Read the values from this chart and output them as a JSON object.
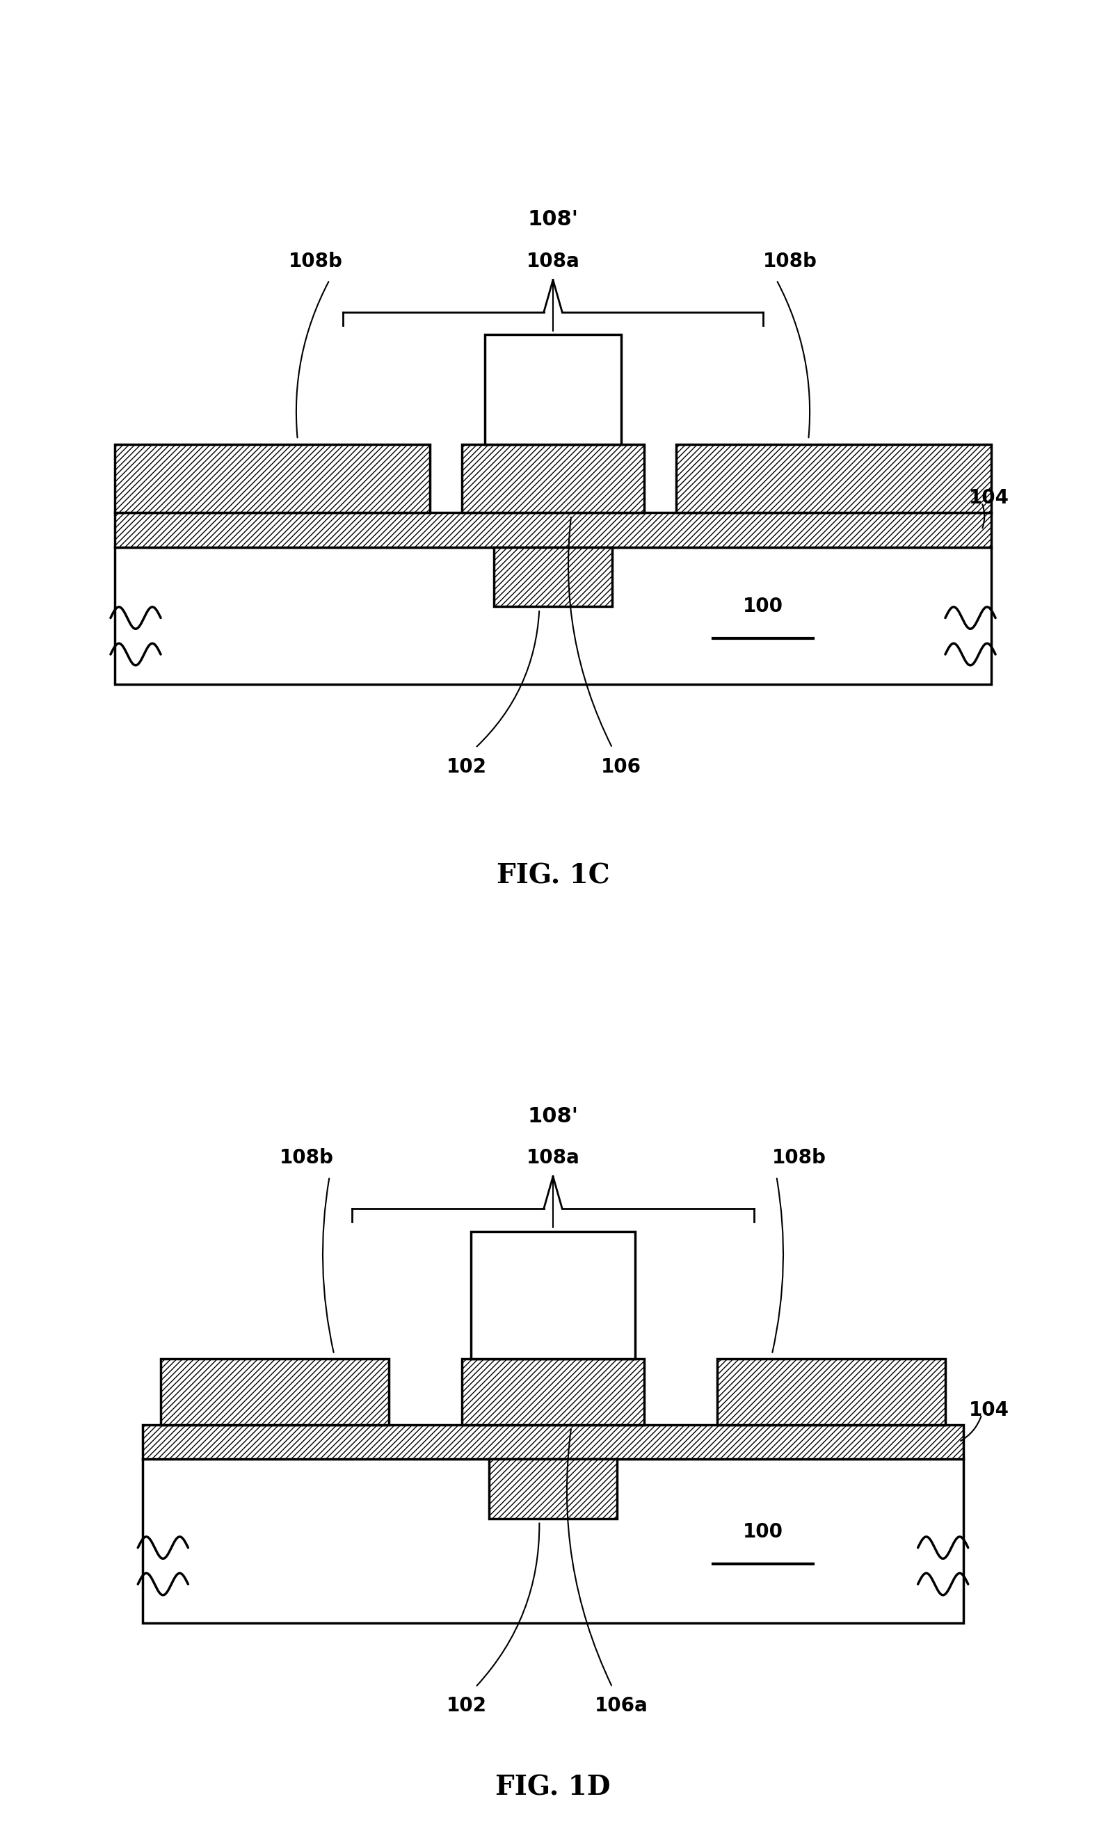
{
  "bg_color": "#ffffff",
  "fig1c": {
    "title": "FIG. 1C",
    "labels": {
      "108prime": "108'",
      "108b_left": "108b",
      "108a": "108a",
      "108b_right": "108b",
      "104": "104",
      "100": "100",
      "102": "102",
      "106": "106"
    }
  },
  "fig1d": {
    "title": "FIG. 1D",
    "labels": {
      "108prime": "108'",
      "108b_left": "108b",
      "108a": "108a",
      "108b_right": "108b",
      "104": "104",
      "100": "100",
      "102": "102",
      "106a": "106a"
    }
  }
}
